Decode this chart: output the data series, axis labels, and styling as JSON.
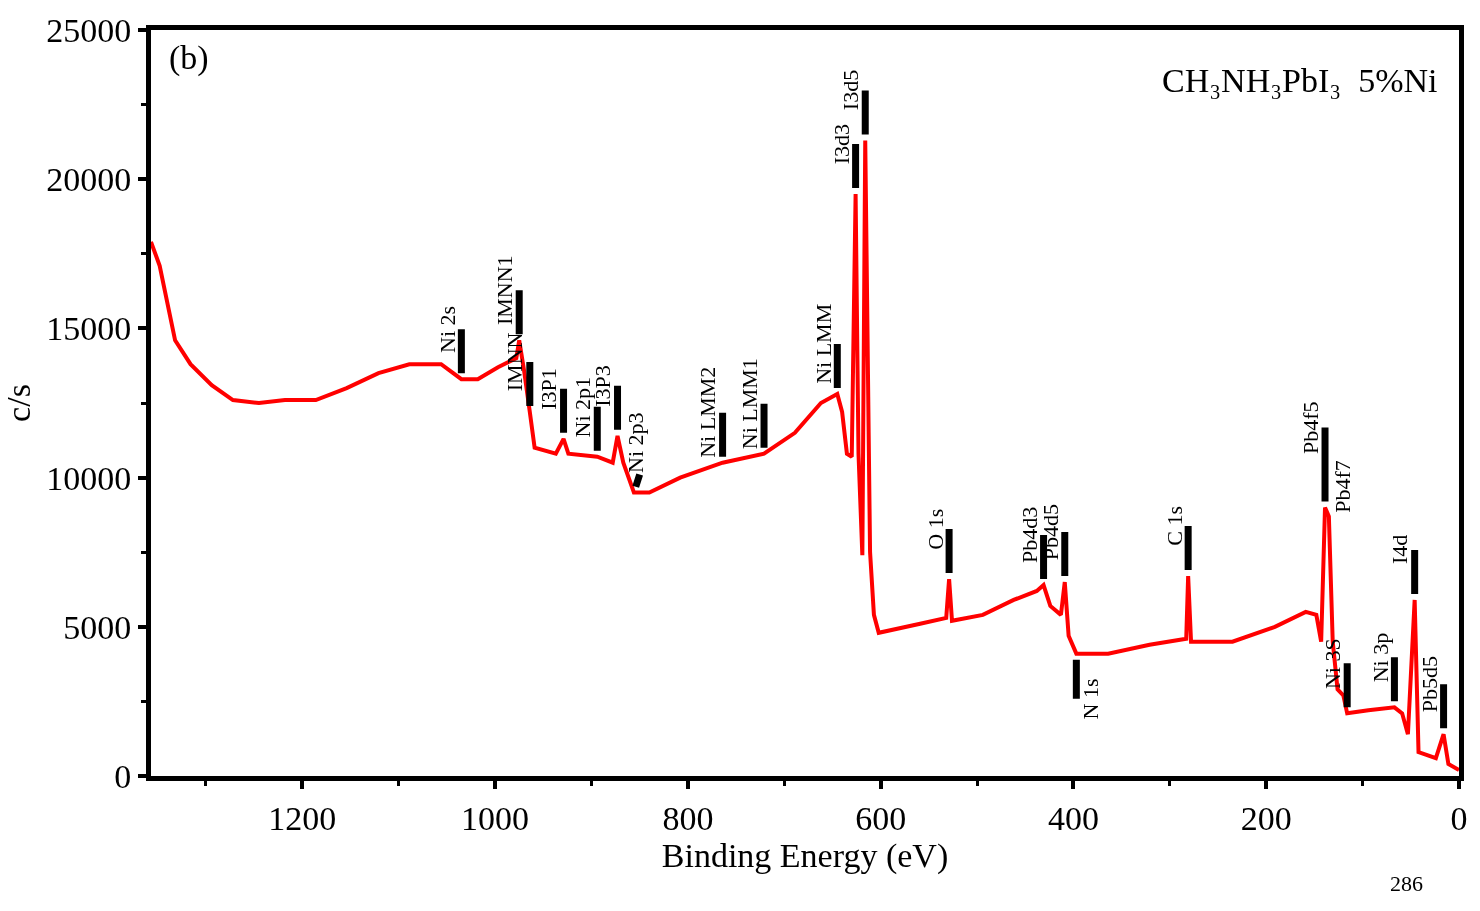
{
  "chart_data": {
    "type": "line",
    "xlabel": "Binding Energy (eV)",
    "ylabel": "c/s",
    "x": [
      1357,
      1348,
      1332,
      1316,
      1294,
      1272,
      1245,
      1218,
      1186,
      1154,
      1121,
      1089,
      1056,
      1035,
      1018,
      997,
      978,
      975,
      970,
      964,
      959,
      937,
      929,
      924,
      894,
      878,
      873,
      867,
      856,
      840,
      808,
      764,
      721,
      689,
      662,
      645,
      640,
      635,
      630,
      626,
      623,
      619,
      616,
      611,
      607,
      602,
      559,
      532,
      529,
      526,
      494,
      462,
      438,
      431,
      424,
      413,
      409,
      405,
      397,
      364,
      321,
      283,
      281,
      278,
      235,
      191,
      159,
      148,
      143,
      139,
      135,
      131,
      126,
      120,
      116,
      94,
      67,
      59,
      53,
      46,
      42,
      24,
      16,
      11,
      0
    ],
    "series": [
      {
        "color": "#ff0000",
        "values": [
          17900,
          17100,
          14600,
          13800,
          13100,
          12600,
          12500,
          12600,
          12600,
          13000,
          13500,
          13800,
          13800,
          13300,
          13300,
          13700,
          14000,
          14600,
          13600,
          12200,
          11000,
          10800,
          11300,
          10800,
          10700,
          10500,
          11400,
          10500,
          9500,
          9500,
          10000,
          10500,
          10800,
          11500,
          12500,
          12800,
          12200,
          10800,
          10700,
          19500,
          10800,
          7400,
          21300,
          7500,
          5400,
          4800,
          5100,
          5300,
          6600,
          5200,
          5400,
          5900,
          6200,
          6400,
          5700,
          5400,
          6500,
          4700,
          4100,
          4100,
          4400,
          4600,
          6700,
          4500,
          4500,
          5000,
          5500,
          5400,
          4500,
          9000,
          8700,
          4500,
          2900,
          2700,
          2100,
          2200,
          2300,
          2100,
          1400,
          5900,
          800,
          600,
          1400,
          400,
          200
        ]
      }
    ],
    "xlim": [
      1357,
      0
    ],
    "ylim": [
      0,
      25000
    ],
    "xticks": [
      1200,
      1000,
      800,
      600,
      400,
      200,
      0
    ],
    "yticks": [
      0,
      5000,
      10000,
      15000,
      20000,
      25000
    ],
    "line_style": "solid",
    "marker": "none",
    "annotations": [
      "(b)",
      "CH₃NH₃PbI₃  5%Ni",
      "286",
      {
        "text": "Ni 2s",
        "x": 1035,
        "y": 13300
      },
      {
        "text": "IMNN1",
        "x": 975,
        "y": 14600
      },
      {
        "text": "IMNN",
        "x": 964,
        "y": 12200
      },
      {
        "text": "I3P1",
        "x": 929,
        "y": 11300
      },
      {
        "text": "Ni 2p1",
        "x": 894,
        "y": 10700
      },
      {
        "text": "I3P3",
        "x": 873,
        "y": 11400
      },
      {
        "text": "Ni 2p3",
        "x": 856,
        "y": 9500
      },
      {
        "text": "Ni LMM2",
        "x": 764,
        "y": 10500
      },
      {
        "text": "Ni LMM1",
        "x": 721,
        "y": 10800
      },
      {
        "text": "Ni LMM",
        "x": 645,
        "y": 12800
      },
      {
        "text": "I3d3",
        "x": 626,
        "y": 19500
      },
      {
        "text": "I3d5",
        "x": 616,
        "y": 21300
      },
      {
        "text": "O 1s",
        "x": 529,
        "y": 6600
      },
      {
        "text": "Pb4d3",
        "x": 431,
        "y": 6400
      },
      {
        "text": "Pb4d5",
        "x": 409,
        "y": 6500
      },
      {
        "text": "N 1s",
        "x": 397,
        "y": 4100
      },
      {
        "text": "C 1s",
        "x": 281,
        "y": 6700
      },
      {
        "text": "Pb4f5",
        "x": 139,
        "y": 9000
      },
      {
        "text": "Pb4f7",
        "x": 135,
        "y": 8700
      },
      {
        "text": "Ni 3S",
        "x": 116,
        "y": 2100
      },
      {
        "text": "Ni 3p",
        "x": 67,
        "y": 2300
      },
      {
        "text": "I4d",
        "x": 46,
        "y": 5900
      },
      {
        "text": "Pb5d5",
        "x": 16,
        "y": 1400
      }
    ]
  }
}
